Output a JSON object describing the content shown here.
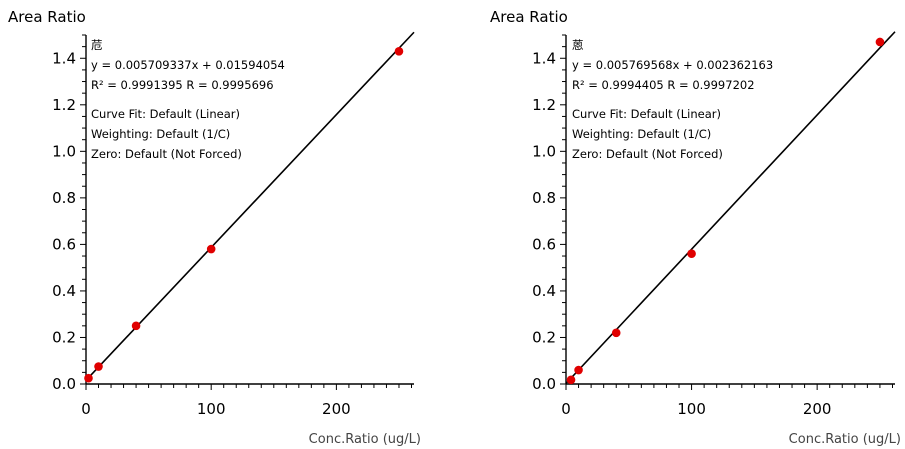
{
  "chart_data": [
    {
      "type": "scatter",
      "compound": "苊",
      "ylabel": "Area Ratio",
      "xlabel": "Conc.Ratio (ug/L)",
      "xlim": [
        0,
        262
      ],
      "ylim": [
        0,
        1.5
      ],
      "xticks": [
        0,
        100,
        200
      ],
      "yticks": [
        0.0,
        0.2,
        0.4,
        0.6,
        0.8,
        1.0,
        1.2,
        1.4
      ],
      "equation": "y = 0.005709337x + 0.01594054",
      "stats": "R² = 0.9991395     R = 0.9995696",
      "curve_fit": "Curve Fit: Default (Linear)",
      "weighting": "Weighting: Default (1/C)",
      "zero": "Zero: Default (Not Forced)",
      "slope": 0.005709337,
      "intercept": 0.01594054,
      "series": [
        {
          "x": [
            2,
            10,
            40,
            100,
            250
          ],
          "y": [
            0.025,
            0.075,
            0.25,
            0.58,
            1.43
          ]
        }
      ]
    },
    {
      "type": "scatter",
      "compound": "蒽",
      "ylabel": "Area Ratio",
      "xlabel": "Conc.Ratio (ug/L)",
      "xlim": [
        0,
        262
      ],
      "ylim": [
        0,
        1.5
      ],
      "xticks": [
        0,
        100,
        200
      ],
      "yticks": [
        0.0,
        0.2,
        0.4,
        0.6,
        0.8,
        1.0,
        1.2,
        1.4
      ],
      "equation": "y = 0.005769568x + 0.002362163",
      "stats": "R² = 0.9994405     R = 0.9997202",
      "curve_fit": "Curve Fit: Default (Linear)",
      "weighting": "Weighting: Default (1/C)",
      "zero": "Zero: Default (Not Forced)",
      "slope": 0.005769568,
      "intercept": 0.002362163,
      "series": [
        {
          "x": [
            4,
            10,
            40,
            100,
            250
          ],
          "y": [
            0.018,
            0.06,
            0.22,
            0.56,
            1.47
          ]
        }
      ]
    }
  ]
}
